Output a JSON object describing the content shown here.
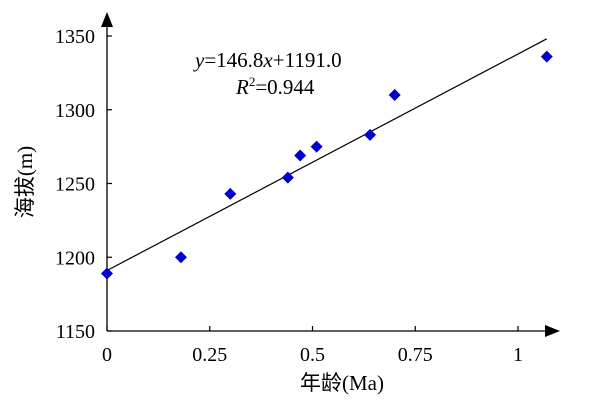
{
  "chart_data": {
    "type": "scatter",
    "title": "",
    "xlabel": "年龄(Ma)",
    "ylabel": "海拔(m)",
    "xlim": [
      0,
      1.1
    ],
    "ylim": [
      1150,
      1350
    ],
    "x_ticks": [
      0,
      0.25,
      0.5,
      0.75,
      1
    ],
    "x_tick_labels": [
      "0",
      "0.25",
      "0.5",
      "0.75",
      "1"
    ],
    "y_ticks": [
      1150,
      1200,
      1250,
      1300,
      1350
    ],
    "y_tick_labels": [
      "1150",
      "1200",
      "1250",
      "1300",
      "1350"
    ],
    "grid": false,
    "series": [
      {
        "marker": "diamond",
        "color": "#0000cc",
        "points": [
          {
            "x": 0.0,
            "y": 1189
          },
          {
            "x": 0.18,
            "y": 1200
          },
          {
            "x": 0.3,
            "y": 1243
          },
          {
            "x": 0.44,
            "y": 1254
          },
          {
            "x": 0.47,
            "y": 1269
          },
          {
            "x": 0.51,
            "y": 1275
          },
          {
            "x": 0.64,
            "y": 1283
          },
          {
            "x": 0.7,
            "y": 1310
          },
          {
            "x": 1.07,
            "y": 1336
          }
        ]
      }
    ],
    "trendline": {
      "slope": 146.8,
      "intercept": 1191.0,
      "x_range": [
        0,
        1.07
      ],
      "color": "#000000"
    },
    "annotations": {
      "equation": {
        "y": "y",
        "eq_rhs": "=146.8",
        "x": "x",
        "rest": "+1191.0"
      },
      "r_squared": {
        "r": "R",
        "sup": "2",
        "rest": "=0.944"
      }
    }
  }
}
